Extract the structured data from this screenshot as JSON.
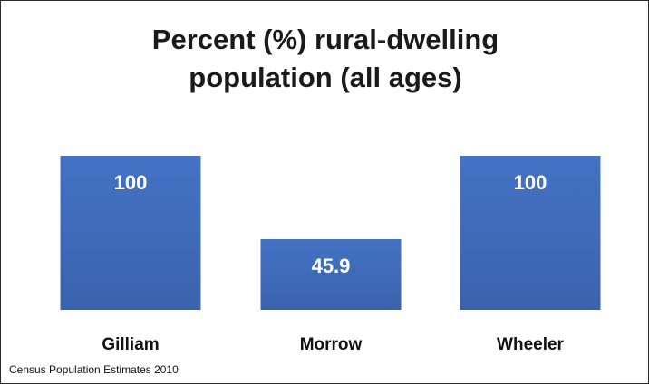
{
  "chart_data": {
    "type": "bar",
    "title_lines": [
      "Percent (%) rural-dwelling",
      "population (all ages)"
    ],
    "categories": [
      "Gilliam",
      "Morrow",
      "Wheeler"
    ],
    "values": [
      100,
      45.9,
      100
    ],
    "value_labels": [
      "100",
      "45.9",
      "100"
    ],
    "ylim": [
      0,
      100
    ],
    "grid": false,
    "legend": "none",
    "colors": {
      "bar_top": "#4472c4",
      "bar_bottom": "#3a63ad",
      "label_text": "#ffffff",
      "axis_text": "#111111"
    }
  },
  "footnote": "Census Population Estimates 2010"
}
